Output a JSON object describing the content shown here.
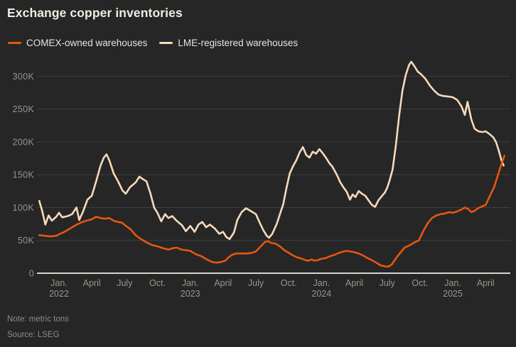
{
  "header": {
    "title": "Exchange copper inventories"
  },
  "footer": {
    "note": "Note: metric tons",
    "source": "Source: LSEG"
  },
  "colors": {
    "background": "#262626",
    "title_text": "#f0ece6",
    "legend_text": "#e8e4de",
    "axis_text": "#98948f",
    "gridline": "#3e3e3e",
    "zero_line": "#d6d3cf"
  },
  "chart_data": {
    "type": "line",
    "title": "Exchange copper inventories",
    "unit": "metric tons",
    "legend_position": "top-left",
    "grid": "horizontal-only",
    "month_index_zero": "2021-11",
    "ylim_k": [
      0,
      330
    ],
    "y_ticks": [
      {
        "value_k": 0,
        "label": "0"
      },
      {
        "value_k": 50,
        "label": "50K"
      },
      {
        "value_k": 100,
        "label": "100K"
      },
      {
        "value_k": 150,
        "label": "150K"
      },
      {
        "value_k": 200,
        "label": "200K"
      },
      {
        "value_k": 250,
        "label": "250K"
      },
      {
        "value_k": 300,
        "label": "300K"
      }
    ],
    "x_ticks": [
      {
        "m": 2,
        "label": "Jan.",
        "year": "2022"
      },
      {
        "m": 5,
        "label": "April",
        "year": ""
      },
      {
        "m": 8,
        "label": "July",
        "year": ""
      },
      {
        "m": 11,
        "label": "Oct.",
        "year": ""
      },
      {
        "m": 14,
        "label": "Jan.",
        "year": "2023"
      },
      {
        "m": 17,
        "label": "April",
        "year": ""
      },
      {
        "m": 20,
        "label": "July",
        "year": ""
      },
      {
        "m": 23,
        "label": "Oct.",
        "year": ""
      },
      {
        "m": 26,
        "label": "Jan.",
        "year": "2024"
      },
      {
        "m": 29,
        "label": "April",
        "year": ""
      },
      {
        "m": 32,
        "label": "July",
        "year": ""
      },
      {
        "m": 35,
        "label": "Oct.",
        "year": ""
      },
      {
        "m": 38,
        "label": "Jan.",
        "year": "2025"
      },
      {
        "m": 41,
        "label": "April",
        "year": ""
      }
    ],
    "series": [
      {
        "key": "comex",
        "name": "COMEX-owned warehouses",
        "color": "#e5570f",
        "points_month_value_k": [
          [
            0.2,
            58
          ],
          [
            0.7,
            57
          ],
          [
            1.2,
            56
          ],
          [
            1.75,
            57
          ],
          [
            2.1,
            60
          ],
          [
            2.5,
            63
          ],
          [
            3.0,
            68
          ],
          [
            3.5,
            73
          ],
          [
            4.0,
            77
          ],
          [
            4.5,
            80
          ],
          [
            5.0,
            82
          ],
          [
            5.4,
            86
          ],
          [
            5.8,
            84
          ],
          [
            6.2,
            83
          ],
          [
            6.6,
            84
          ],
          [
            7.0,
            80
          ],
          [
            7.4,
            78
          ],
          [
            7.75,
            77
          ],
          [
            8.2,
            71
          ],
          [
            8.6,
            66
          ],
          [
            9.0,
            58
          ],
          [
            9.5,
            52
          ],
          [
            10.0,
            47
          ],
          [
            10.5,
            43
          ],
          [
            11.0,
            41
          ],
          [
            11.5,
            38
          ],
          [
            12.0,
            36
          ],
          [
            12.4,
            38
          ],
          [
            12.75,
            39
          ],
          [
            13.2,
            36
          ],
          [
            13.6,
            35
          ],
          [
            14.0,
            34
          ],
          [
            14.5,
            29
          ],
          [
            15.0,
            26
          ],
          [
            15.5,
            21
          ],
          [
            16.0,
            17
          ],
          [
            16.4,
            16
          ],
          [
            16.8,
            17
          ],
          [
            17.2,
            19
          ],
          [
            17.5,
            24
          ],
          [
            17.8,
            28
          ],
          [
            18.2,
            30
          ],
          [
            18.7,
            30
          ],
          [
            19.2,
            30
          ],
          [
            19.6,
            31
          ],
          [
            20.0,
            33
          ],
          [
            20.4,
            40
          ],
          [
            20.8,
            47
          ],
          [
            21.1,
            49
          ],
          [
            21.4,
            46
          ],
          [
            21.8,
            45
          ],
          [
            22.2,
            41
          ],
          [
            22.6,
            35
          ],
          [
            23.0,
            31
          ],
          [
            23.4,
            27
          ],
          [
            23.8,
            24
          ],
          [
            24.2,
            22
          ],
          [
            24.5,
            20
          ],
          [
            24.8,
            19
          ],
          [
            25.1,
            21
          ],
          [
            25.35,
            19
          ],
          [
            25.7,
            20
          ],
          [
            26.0,
            22
          ],
          [
            26.4,
            23
          ],
          [
            26.8,
            26
          ],
          [
            27.2,
            28
          ],
          [
            27.6,
            31
          ],
          [
            28.0,
            33
          ],
          [
            28.3,
            34
          ],
          [
            28.7,
            33
          ],
          [
            29.0,
            32
          ],
          [
            29.4,
            30
          ],
          [
            29.8,
            27
          ],
          [
            30.2,
            23
          ],
          [
            30.6,
            20
          ],
          [
            31.0,
            16
          ],
          [
            31.4,
            12
          ],
          [
            31.8,
            10.5
          ],
          [
            32.1,
            10
          ],
          [
            32.4,
            13
          ],
          [
            32.7,
            20
          ],
          [
            33.0,
            27
          ],
          [
            33.3,
            33
          ],
          [
            33.6,
            39
          ],
          [
            34.0,
            42
          ],
          [
            34.4,
            46
          ],
          [
            34.9,
            50
          ],
          [
            35.3,
            64
          ],
          [
            35.7,
            76
          ],
          [
            36.1,
            84
          ],
          [
            36.5,
            88
          ],
          [
            36.9,
            90
          ],
          [
            37.3,
            91
          ],
          [
            37.7,
            93
          ],
          [
            38.0,
            92
          ],
          [
            38.4,
            94
          ],
          [
            38.8,
            97
          ],
          [
            39.1,
            100
          ],
          [
            39.4,
            98
          ],
          [
            39.7,
            93
          ],
          [
            40.0,
            95
          ],
          [
            40.3,
            99
          ],
          [
            40.6,
            101
          ],
          [
            41.0,
            104
          ],
          [
            41.4,
            118
          ],
          [
            41.8,
            132
          ],
          [
            42.1,
            148
          ],
          [
            42.4,
            164
          ],
          [
            42.6,
            173
          ],
          [
            42.72,
            179
          ]
        ]
      },
      {
        "key": "lme",
        "name": "LME-registered warehouses",
        "color": "#f7d9bb",
        "points_month_value_k": [
          [
            0.2,
            110
          ],
          [
            0.45,
            96
          ],
          [
            0.75,
            74
          ],
          [
            1.05,
            88
          ],
          [
            1.35,
            80
          ],
          [
            1.75,
            86
          ],
          [
            2.0,
            92
          ],
          [
            2.3,
            85
          ],
          [
            2.8,
            87
          ],
          [
            3.2,
            90
          ],
          [
            3.6,
            100
          ],
          [
            3.85,
            81
          ],
          [
            4.2,
            94
          ],
          [
            4.6,
            112
          ],
          [
            5.0,
            118
          ],
          [
            5.4,
            140
          ],
          [
            5.8,
            164
          ],
          [
            6.1,
            176
          ],
          [
            6.35,
            181
          ],
          [
            6.6,
            172
          ],
          [
            7.0,
            152
          ],
          [
            7.4,
            140
          ],
          [
            7.8,
            126
          ],
          [
            8.1,
            121
          ],
          [
            8.5,
            131
          ],
          [
            9.0,
            138
          ],
          [
            9.35,
            147
          ],
          [
            9.7,
            143
          ],
          [
            10.0,
            140
          ],
          [
            10.35,
            122
          ],
          [
            10.7,
            100
          ],
          [
            11.0,
            92
          ],
          [
            11.35,
            79
          ],
          [
            11.7,
            90
          ],
          [
            12.0,
            84
          ],
          [
            12.35,
            87
          ],
          [
            12.75,
            80
          ],
          [
            13.25,
            73
          ],
          [
            13.6,
            64
          ],
          [
            14.0,
            72
          ],
          [
            14.4,
            63
          ],
          [
            14.75,
            74
          ],
          [
            15.1,
            78
          ],
          [
            15.45,
            70
          ],
          [
            15.8,
            74
          ],
          [
            16.25,
            68
          ],
          [
            16.65,
            60
          ],
          [
            17.0,
            63
          ],
          [
            17.3,
            55
          ],
          [
            17.6,
            52
          ],
          [
            18.0,
            62
          ],
          [
            18.3,
            81
          ],
          [
            18.7,
            93
          ],
          [
            19.1,
            99
          ],
          [
            19.5,
            95
          ],
          [
            20.0,
            90
          ],
          [
            20.4,
            75
          ],
          [
            20.7,
            65
          ],
          [
            21.0,
            57
          ],
          [
            21.2,
            54
          ],
          [
            21.5,
            60
          ],
          [
            21.9,
            75
          ],
          [
            22.2,
            90
          ],
          [
            22.5,
            105
          ],
          [
            22.8,
            130
          ],
          [
            23.1,
            152
          ],
          [
            23.4,
            163
          ],
          [
            23.7,
            172
          ],
          [
            24.0,
            184
          ],
          [
            24.3,
            192
          ],
          [
            24.6,
            180
          ],
          [
            24.9,
            176
          ],
          [
            25.2,
            185
          ],
          [
            25.5,
            182
          ],
          [
            25.8,
            189
          ],
          [
            26.1,
            183
          ],
          [
            26.4,
            176
          ],
          [
            26.7,
            168
          ],
          [
            27.0,
            162
          ],
          [
            27.4,
            150
          ],
          [
            27.7,
            139
          ],
          [
            28.0,
            131
          ],
          [
            28.3,
            124
          ],
          [
            28.6,
            112
          ],
          [
            28.85,
            120
          ],
          [
            29.1,
            116
          ],
          [
            29.4,
            125
          ],
          [
            29.7,
            121
          ],
          [
            30.0,
            118
          ],
          [
            30.3,
            111
          ],
          [
            30.6,
            104
          ],
          [
            30.9,
            101
          ],
          [
            31.2,
            111
          ],
          [
            31.5,
            117
          ],
          [
            31.8,
            123
          ],
          [
            32.0,
            130
          ],
          [
            32.2,
            140
          ],
          [
            32.5,
            158
          ],
          [
            32.8,
            195
          ],
          [
            33.1,
            240
          ],
          [
            33.4,
            278
          ],
          [
            33.7,
            302
          ],
          [
            34.0,
            317
          ],
          [
            34.2,
            322
          ],
          [
            34.5,
            315
          ],
          [
            34.8,
            307
          ],
          [
            35.1,
            303
          ],
          [
            35.5,
            296
          ],
          [
            35.9,
            286
          ],
          [
            36.3,
            278
          ],
          [
            36.7,
            272
          ],
          [
            37.1,
            270
          ],
          [
            37.6,
            269
          ],
          [
            38.0,
            268
          ],
          [
            38.4,
            264
          ],
          [
            38.8,
            254
          ],
          [
            39.1,
            241
          ],
          [
            39.35,
            261
          ],
          [
            39.7,
            234
          ],
          [
            40.0,
            220
          ],
          [
            40.35,
            216
          ],
          [
            40.7,
            215
          ],
          [
            41.0,
            216
          ],
          [
            41.35,
            212
          ],
          [
            41.7,
            207
          ],
          [
            41.95,
            200
          ],
          [
            42.2,
            187
          ],
          [
            42.45,
            172
          ],
          [
            42.65,
            164
          ]
        ]
      }
    ]
  }
}
